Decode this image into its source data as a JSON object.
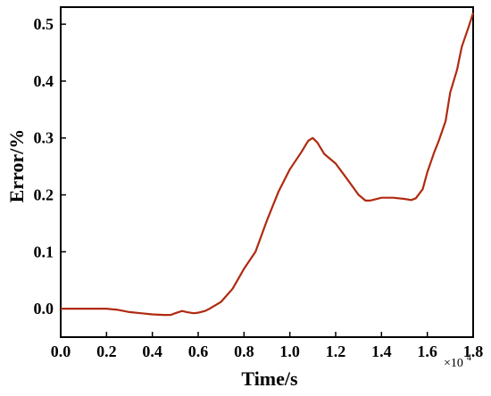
{
  "chart_data": {
    "type": "line",
    "xlabel": "Time/s",
    "ylabel": "Error/%",
    "x_multiplier_base": "×10",
    "x_multiplier_exp": "4",
    "xlim": [
      0.0,
      1.8
    ],
    "ylim": [
      -0.05,
      0.53
    ],
    "x_ticks": [
      "0.0",
      "0.2",
      "0.4",
      "0.6",
      "0.8",
      "1.0",
      "1.2",
      "1.4",
      "1.6",
      "1.8"
    ],
    "y_ticks": [
      "0.0",
      "0.1",
      "0.2",
      "0.3",
      "0.4",
      "0.5"
    ],
    "line_color": "#b02a10",
    "series": [
      {
        "x": [
          0.0,
          0.1,
          0.2,
          0.25,
          0.3,
          0.35,
          0.4,
          0.45,
          0.48,
          0.5,
          0.53,
          0.55,
          0.58,
          0.6,
          0.63,
          0.65,
          0.7,
          0.75,
          0.8,
          0.85,
          0.9,
          0.95,
          1.0,
          1.05,
          1.08,
          1.1,
          1.12,
          1.15,
          1.2,
          1.25,
          1.3,
          1.33,
          1.35,
          1.4,
          1.45,
          1.5,
          1.53,
          1.55,
          1.58,
          1.6,
          1.63,
          1.65,
          1.68,
          1.7,
          1.73,
          1.75,
          1.78,
          1.8
        ],
        "y": [
          0.0,
          0.0,
          0.0,
          -0.002,
          -0.006,
          -0.008,
          -0.01,
          -0.011,
          -0.011,
          -0.008,
          -0.004,
          -0.006,
          -0.008,
          -0.007,
          -0.004,
          0.0,
          0.012,
          0.035,
          0.07,
          0.1,
          0.155,
          0.205,
          0.245,
          0.275,
          0.295,
          0.3,
          0.292,
          0.272,
          0.255,
          0.228,
          0.2,
          0.19,
          0.19,
          0.195,
          0.195,
          0.193,
          0.191,
          0.194,
          0.21,
          0.24,
          0.275,
          0.295,
          0.33,
          0.38,
          0.42,
          0.46,
          0.495,
          0.52
        ]
      }
    ]
  }
}
